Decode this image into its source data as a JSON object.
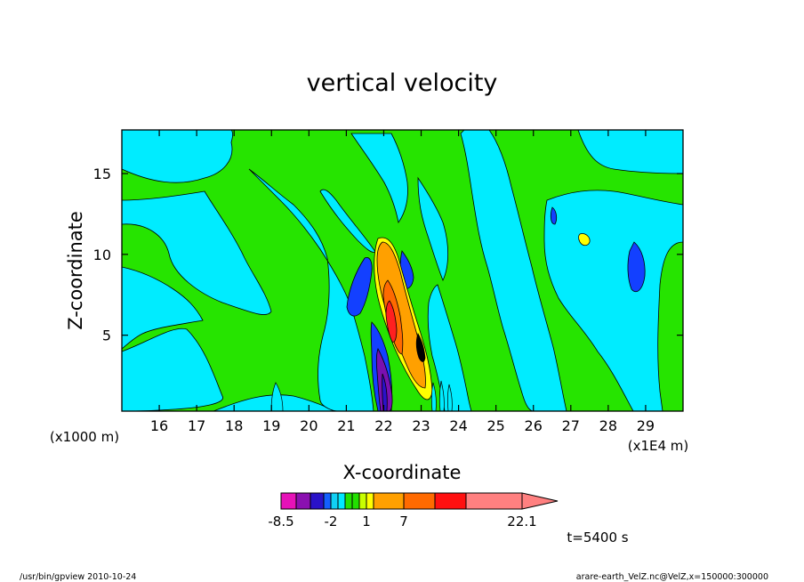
{
  "chart_data": {
    "type": "heatmap",
    "title": "vertical velocity",
    "xlabel": "X-coordinate",
    "ylabel": "Z-coordinate",
    "x_unit_note": "(x1E4 m)",
    "y_unit_note": "(x1000 m)",
    "xlim": [
      15.0,
      30.0
    ],
    "ylim": [
      0.3,
      17.7
    ],
    "x_ticks": [
      16,
      17,
      18,
      19,
      20,
      21,
      22,
      23,
      24,
      25,
      26,
      27,
      28,
      29
    ],
    "y_ticks": [
      5,
      10,
      15
    ],
    "colorbar": {
      "levels": [
        -8.5,
        -6.5,
        -4.5,
        -3,
        -2,
        -1,
        -0.5,
        0,
        0.5,
        1,
        3,
        7,
        10,
        14,
        22.1
      ],
      "labels": [
        "-8.5",
        "-2",
        "1",
        "7",
        "22.1"
      ],
      "label_values": [
        -8.5,
        -2,
        1,
        7,
        22.1
      ],
      "colors": [
        "#e612b8",
        "#8a10b0",
        "#2a12c8",
        "#1360ff",
        "#10d0f5",
        "#00e8ff",
        "#22e000",
        "#22e000",
        "#c8ff00",
        "#ffff00",
        "#ffa000",
        "#ff6a00",
        "#ff1010",
        "#ff8080"
      ],
      "extend": "max"
    },
    "time_label": "t=5400 s",
    "footer_left": "/usr/bin/gpview   2010-10-24",
    "footer_right": "arare-earth_VelZ.nc@VelZ,x=150000:300000",
    "colors": {
      "negative_weak": "#00ecff",
      "near_zero": "#26e400",
      "negative_strong": "#1340ff",
      "negative_extreme": "#7a10b0",
      "positive_weak": "#ffff00",
      "positive_mid": "#ffa000",
      "positive_high": "#ff6a00",
      "positive_max": "#ff2020"
    }
  }
}
